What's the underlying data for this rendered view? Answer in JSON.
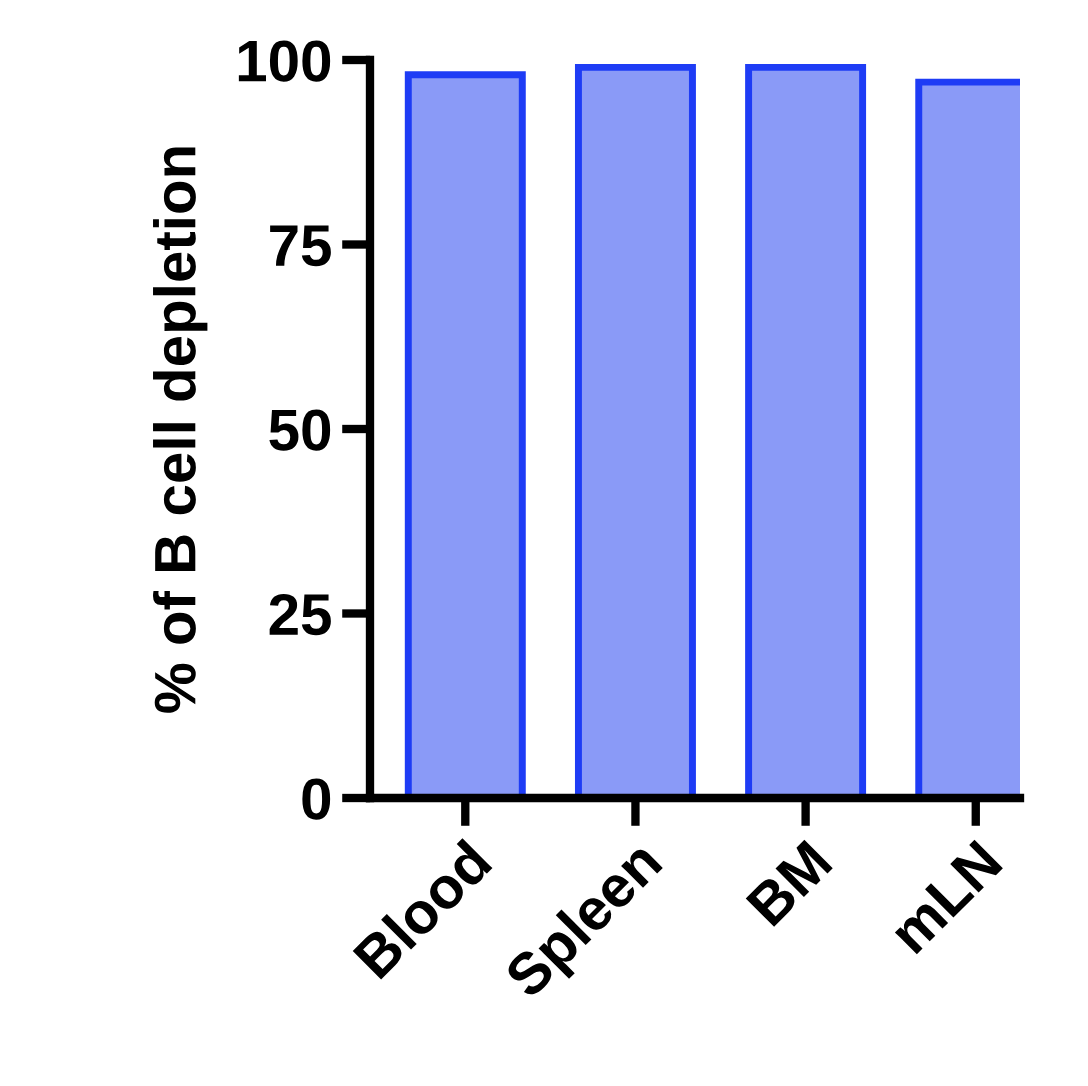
{
  "chart_data": {
    "type": "bar",
    "ylabel": "% of B cell depletion",
    "categories": [
      "Blood",
      "Spleen",
      "BM",
      "mLN"
    ],
    "values": [
      98,
      99,
      99,
      97
    ],
    "color": "#8a9af7",
    "ylim": [
      0,
      100
    ],
    "yticks": [
      0,
      25,
      50,
      75,
      100
    ],
    "grid": false,
    "legend": false
  }
}
